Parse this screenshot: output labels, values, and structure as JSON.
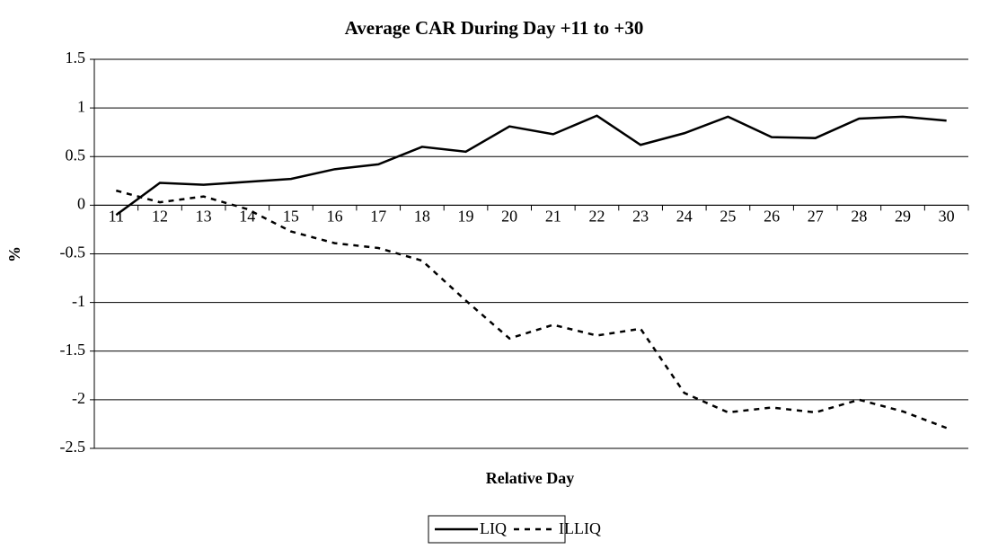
{
  "chart_data": {
    "type": "line",
    "title": "Average CAR During Day +11 to +30",
    "x_label": "Relative Day",
    "y_label": "%",
    "categories": [
      "11",
      "12",
      "13",
      "14",
      "15",
      "16",
      "17",
      "18",
      "19",
      "20",
      "21",
      "22",
      "23",
      "24",
      "25",
      "26",
      "27",
      "28",
      "29",
      "30"
    ],
    "series": [
      {
        "name": "LIQ",
        "color": "#000000",
        "style": "solid",
        "values": [
          -0.1,
          0.23,
          0.21,
          0.24,
          0.27,
          0.37,
          0.42,
          0.6,
          0.55,
          0.81,
          0.73,
          0.92,
          0.62,
          0.74,
          0.91,
          0.7,
          0.69,
          0.89,
          0.91,
          0.87
        ]
      },
      {
        "name": "ILLIQ",
        "color": "#000000",
        "style": "dashed",
        "values": [
          0.15,
          0.03,
          0.09,
          -0.04,
          -0.27,
          -0.39,
          -0.44,
          -0.57,
          -0.98,
          -1.37,
          -1.23,
          -1.34,
          -1.27,
          -1.93,
          -2.13,
          -2.08,
          -2.13,
          -2.0,
          -2.12,
          -2.29
        ]
      }
    ],
    "ylim": [
      -2.5,
      1.5
    ],
    "yticks": [
      1.5,
      1,
      0.5,
      0,
      -0.5,
      -1,
      -1.5,
      -2,
      -2.5
    ],
    "grid": true,
    "legend": "bottom"
  }
}
